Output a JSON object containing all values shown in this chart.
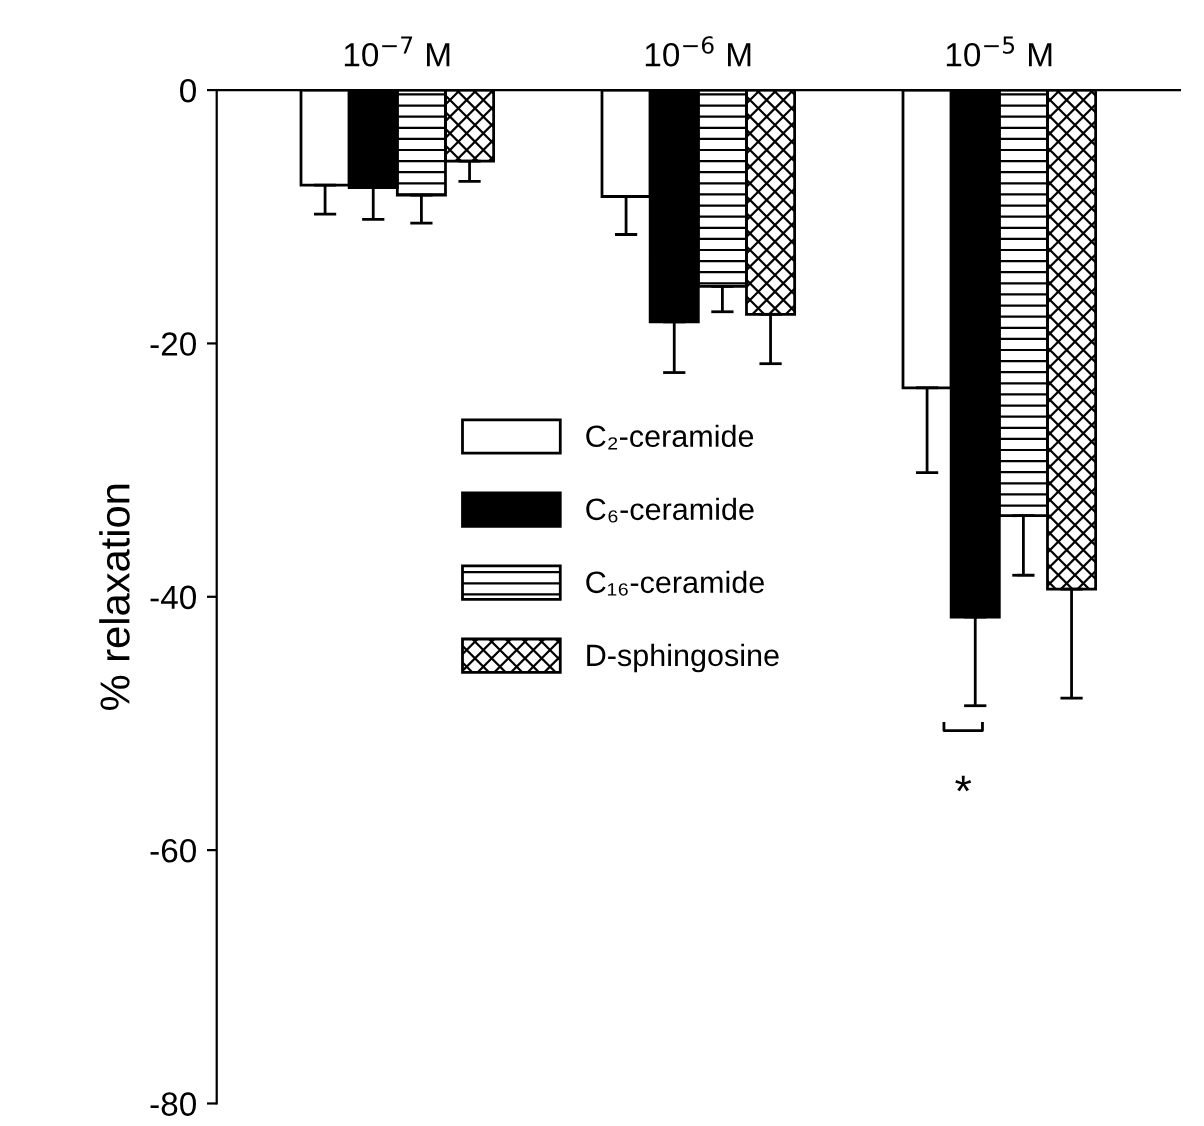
{
  "chart_data": {
    "type": "bar",
    "ylabel": "% relaxation",
    "categories": [
      "10$^{−7}$ M",
      "10$^{−6}$ M",
      "10$^{−5}$ M"
    ],
    "series": [
      {
        "name": "C₂-ceramide",
        "color": "#ffffff",
        "values": [
          -7.5,
          -8.4,
          -23.5
        ],
        "errors": [
          [
            -9.8,
            -7.5
          ],
          [
            -11.4,
            -8.4
          ],
          [
            -30.2,
            -23.5
          ]
        ]
      },
      {
        "name": "C₆-ceramide",
        "color": "#000000",
        "values": [
          -7.7,
          -18.3,
          -41.6
        ],
        "errors": [
          [
            -10.2,
            -7.7
          ],
          [
            -22.3,
            -18.3
          ],
          [
            -48.6,
            -41.6
          ]
        ]
      },
      {
        "name": "C₁₆-ceramide",
        "color": "#000000",
        "values": [
          -8.3,
          -15.5,
          -33.6
        ],
        "errors": [
          [
            -10.5,
            -8.3
          ],
          [
            -17.5,
            -15.5
          ],
          [
            -38.3,
            -33.6
          ]
        ]
      },
      {
        "name": "D-sphingosine",
        "color": "#000000",
        "values": [
          -5.6,
          -17.7,
          -39.4
        ],
        "errors": [
          [
            -7.2,
            -5.6
          ],
          [
            -21.6,
            -17.7
          ],
          [
            -48.0,
            -39.4
          ]
        ]
      }
    ],
    "ylim": [
      -80,
      0
    ],
    "yticks": [
      -80,
      -60,
      -40,
      -20,
      0
    ],
    "annotations": [
      "*"
    ],
    "legend": "center",
    "grid": false
  }
}
